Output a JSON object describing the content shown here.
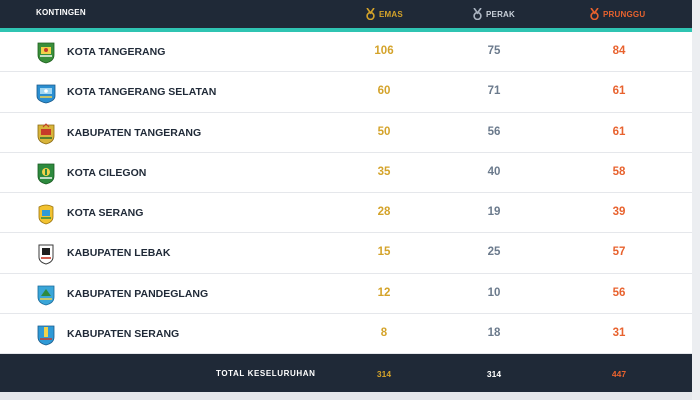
{
  "header": {
    "contingent": "KONTINGEN",
    "gold": "EMAS",
    "silver": "PERAK",
    "bronze": "PRUNGGU"
  },
  "colors": {
    "gold": "#d4a32a",
    "silver": "#6b7a8c",
    "bronze": "#e8622e",
    "header_bg": "#1f2937",
    "accent": "#2fc4b2"
  },
  "rows": [
    {
      "name": "KOTA TANGERANG",
      "gold": "106",
      "silver": "75",
      "bronze": "84",
      "logo_icon": "kota-tangerang-emblem-icon"
    },
    {
      "name": "KOTA TANGERANG SELATAN",
      "gold": "60",
      "silver": "71",
      "bronze": "61",
      "logo_icon": "kota-tangerang-selatan-emblem-icon"
    },
    {
      "name": "KABUPATEN TANGERANG",
      "gold": "50",
      "silver": "56",
      "bronze": "61",
      "logo_icon": "kabupaten-tangerang-emblem-icon"
    },
    {
      "name": "KOTA CILEGON",
      "gold": "35",
      "silver": "40",
      "bronze": "58",
      "logo_icon": "kota-cilegon-emblem-icon"
    },
    {
      "name": "KOTA SERANG",
      "gold": "28",
      "silver": "19",
      "bronze": "39",
      "logo_icon": "kota-serang-emblem-icon"
    },
    {
      "name": "KABUPATEN LEBAK",
      "gold": "15",
      "silver": "25",
      "bronze": "57",
      "logo_icon": "kabupaten-lebak-emblem-icon"
    },
    {
      "name": "KABUPATEN PANDEGLANG",
      "gold": "12",
      "silver": "10",
      "bronze": "56",
      "logo_icon": "kabupaten-pandeglang-emblem-icon"
    },
    {
      "name": "KABUPATEN SERANG",
      "gold": "8",
      "silver": "18",
      "bronze": "31",
      "logo_icon": "kabupaten-serang-emblem-icon"
    }
  ],
  "footer": {
    "label": "TOTAL KESELURUHAN",
    "gold": "314",
    "silver": "314",
    "bronze": "447"
  }
}
